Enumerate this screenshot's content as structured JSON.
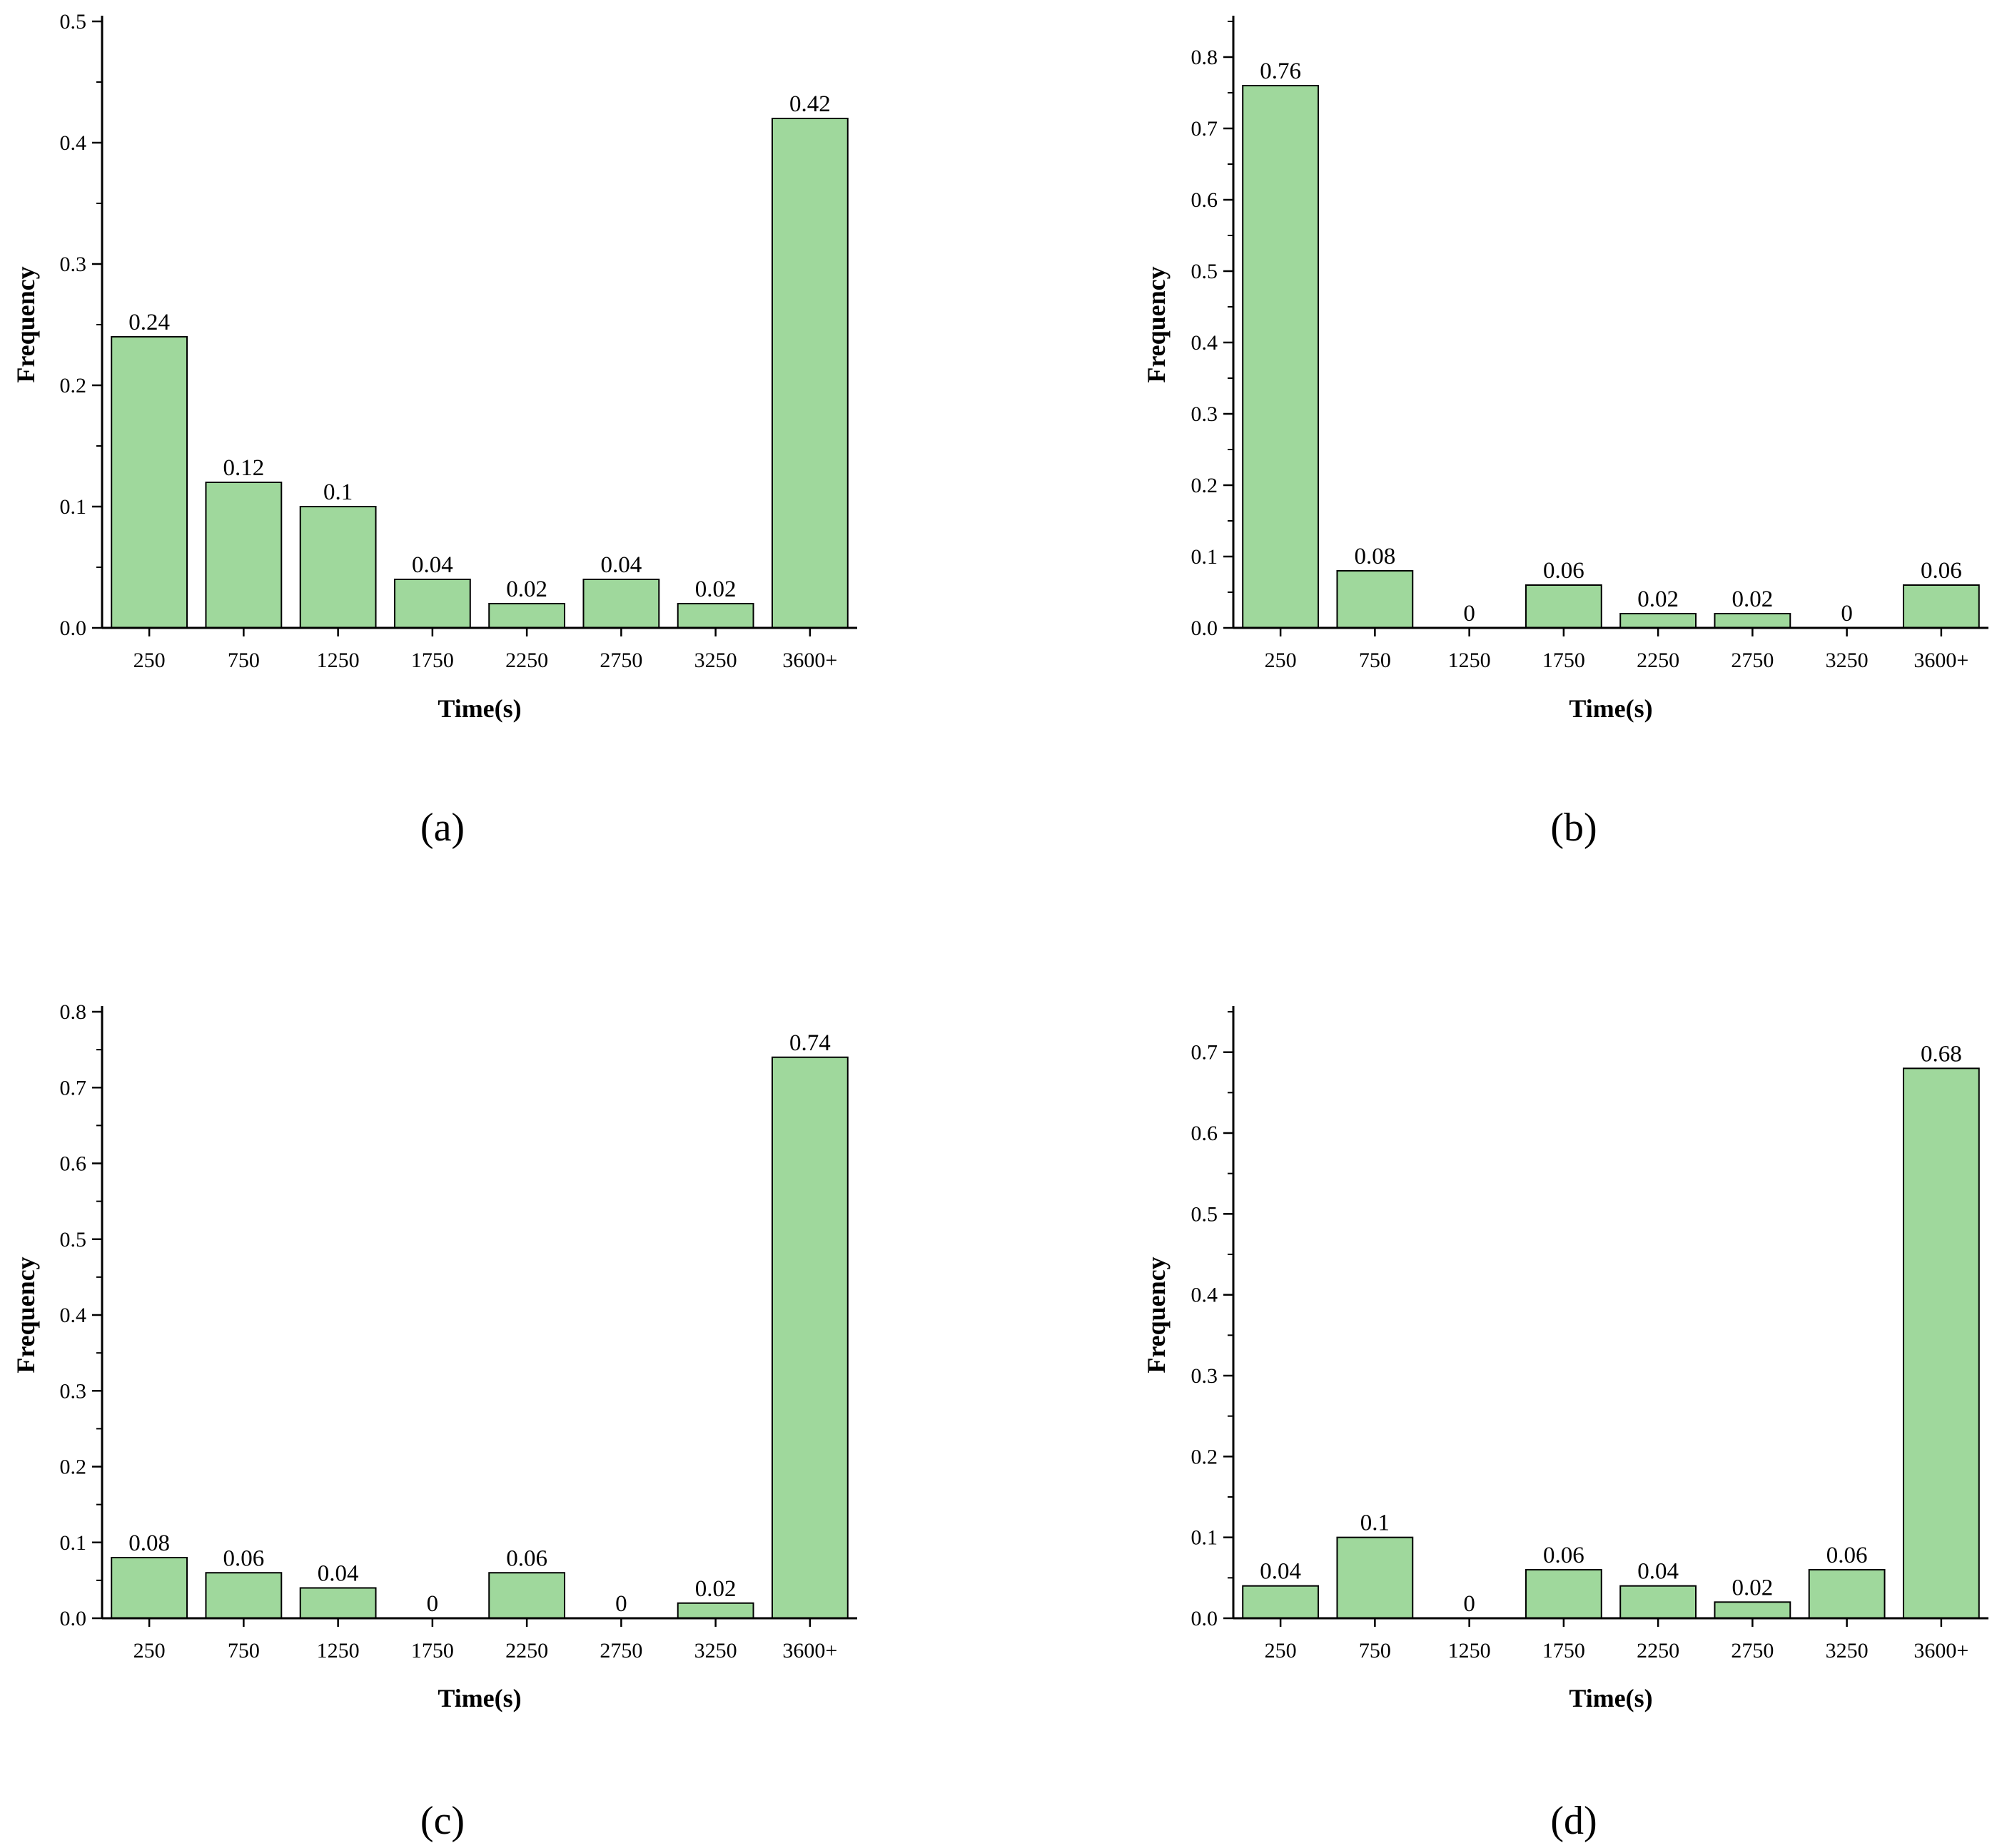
{
  "figure_colors": {
    "bar_fill": "#9fd89c",
    "bar_stroke": "#000000",
    "axis": "#000000"
  },
  "chart_data": [
    {
      "type": "bar",
      "panel_label": "(a)",
      "categories": [
        "250",
        "750",
        "1250",
        "1750",
        "2250",
        "2750",
        "3250",
        "3600+"
      ],
      "values": [
        0.24,
        0.12,
        0.1,
        0.04,
        0.02,
        0.04,
        0.02,
        0.42
      ],
      "value_labels": [
        "0.24",
        "0.12",
        "0.1",
        "0.04",
        "0.02",
        "0.04",
        "0.02",
        "0.42"
      ],
      "xlabel": "Time(s)",
      "ylabel": "Frequency",
      "ylim": [
        0,
        0.5
      ],
      "yticks": [
        "0.0",
        "0.1",
        "0.2",
        "0.3",
        "0.4",
        "0.5"
      ],
      "ytick_values": [
        0,
        0.1,
        0.2,
        0.3,
        0.4,
        0.5
      ],
      "minor_step": 0.05
    },
    {
      "type": "bar",
      "panel_label": "(b)",
      "categories": [
        "250",
        "750",
        "1250",
        "1750",
        "2250",
        "2750",
        "3250",
        "3600+"
      ],
      "values": [
        0.76,
        0.08,
        0,
        0.06,
        0.02,
        0.02,
        0,
        0.06
      ],
      "value_labels": [
        "0.76",
        "0.08",
        "0",
        "0.06",
        "0.02",
        "0.02",
        "0",
        "0.06"
      ],
      "xlabel": "Time(s)",
      "ylabel": "Frequency",
      "ylim": [
        0,
        0.85
      ],
      "yticks": [
        "0.0",
        "0.1",
        "0.2",
        "0.3",
        "0.4",
        "0.5",
        "0.6",
        "0.7",
        "0.8"
      ],
      "ytick_values": [
        0,
        0.1,
        0.2,
        0.3,
        0.4,
        0.5,
        0.6,
        0.7,
        0.8
      ],
      "minor_step": 0.05
    },
    {
      "type": "bar",
      "panel_label": "(c)",
      "categories": [
        "250",
        "750",
        "1250",
        "1750",
        "2250",
        "2750",
        "3250",
        "3600+"
      ],
      "values": [
        0.08,
        0.06,
        0.04,
        0,
        0.06,
        0,
        0.02,
        0.74
      ],
      "value_labels": [
        "0.08",
        "0.06",
        "0.04",
        "0",
        "0.06",
        "0",
        "0.02",
        "0.74"
      ],
      "xlabel": "Time(s)",
      "ylabel": "Frequency",
      "ylim": [
        0,
        0.8
      ],
      "yticks": [
        "0.0",
        "0.1",
        "0.2",
        "0.3",
        "0.4",
        "0.5",
        "0.6",
        "0.7",
        "0.8"
      ],
      "ytick_values": [
        0,
        0.1,
        0.2,
        0.3,
        0.4,
        0.5,
        0.6,
        0.7,
        0.8
      ],
      "minor_step": 0.05
    },
    {
      "type": "bar",
      "panel_label": "(d)",
      "categories": [
        "250",
        "750",
        "1250",
        "1750",
        "2250",
        "2750",
        "3250",
        "3600+"
      ],
      "values": [
        0.04,
        0.1,
        0,
        0.06,
        0.04,
        0.02,
        0.06,
        0.68
      ],
      "value_labels": [
        "0.04",
        "0.1",
        "0",
        "0.06",
        "0.04",
        "0.02",
        "0.06",
        "0.68"
      ],
      "xlabel": "Time(s)",
      "ylabel": "Frequency",
      "ylim": [
        0,
        0.75
      ],
      "yticks": [
        "0.0",
        "0.1",
        "0.2",
        "0.3",
        "0.4",
        "0.5",
        "0.6",
        "0.7"
      ],
      "ytick_values": [
        0,
        0.1,
        0.2,
        0.3,
        0.4,
        0.5,
        0.6,
        0.7
      ],
      "minor_step": 0.05
    }
  ]
}
